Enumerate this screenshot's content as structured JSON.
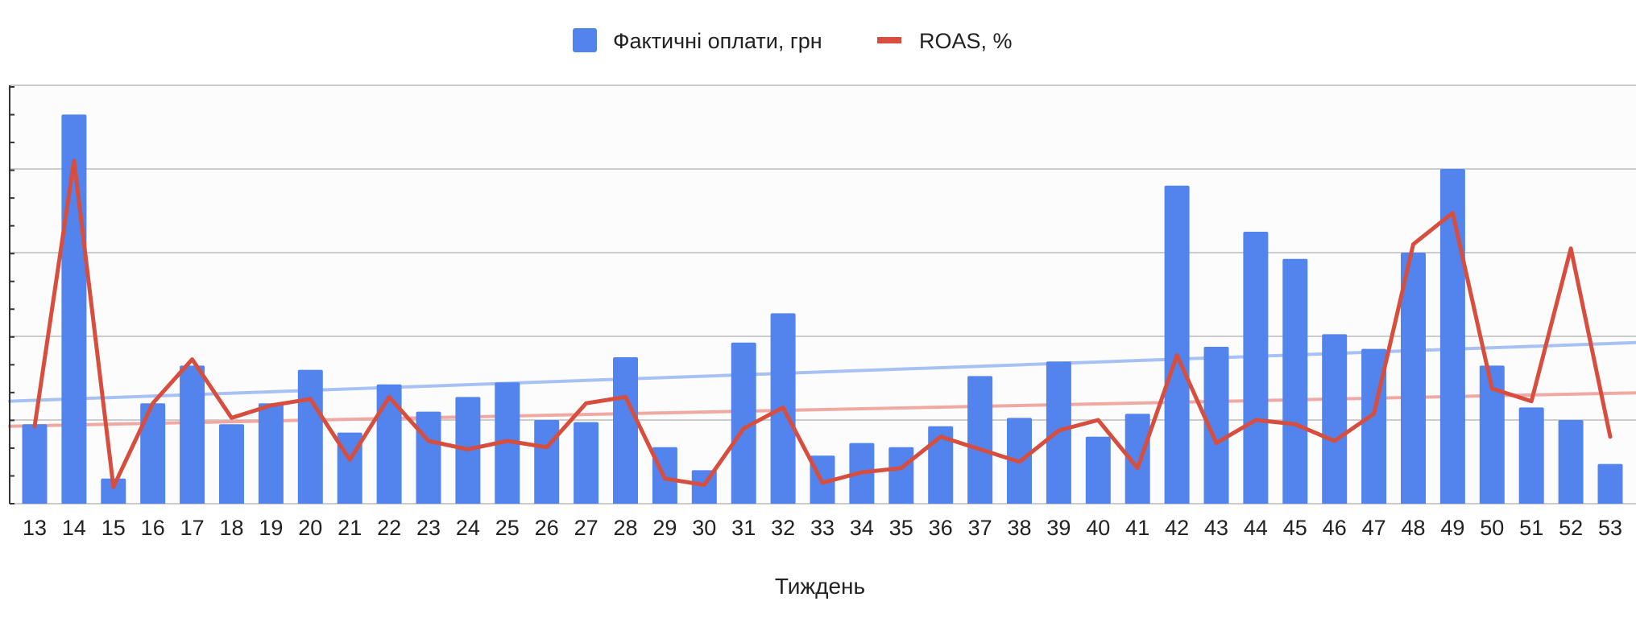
{
  "chart_data": {
    "type": "bar",
    "title": "",
    "xlabel": "Тиждень",
    "ylabel": "",
    "categories": [
      "13",
      "14",
      "15",
      "16",
      "17",
      "18",
      "19",
      "20",
      "21",
      "22",
      "23",
      "24",
      "25",
      "26",
      "27",
      "28",
      "29",
      "30",
      "31",
      "32",
      "33",
      "34",
      "35",
      "36",
      "37",
      "38",
      "39",
      "40",
      "41",
      "42",
      "43",
      "44",
      "45",
      "46",
      "47",
      "48",
      "49",
      "50",
      "51",
      "52",
      "53"
    ],
    "ylim": [
      0,
      100
    ],
    "grid": true,
    "legend_position": "top",
    "series": [
      {
        "name": "Фактичні оплати, грн",
        "kind": "bar",
        "color": "#5383EC",
        "values": [
          19,
          93,
          6,
          24,
          33,
          19,
          24,
          32,
          17,
          28.5,
          22,
          25.5,
          29,
          20,
          19.5,
          35,
          13.5,
          8,
          38.5,
          45.5,
          11.5,
          14.5,
          13.5,
          18.5,
          30.5,
          20.5,
          34,
          16,
          21.5,
          76,
          37.5,
          65,
          58.5,
          40.5,
          37,
          60,
          80,
          33,
          23,
          20,
          9.5
        ]
      },
      {
        "name": "ROAS, %",
        "kind": "line",
        "color": "#D74E3F",
        "values": [
          18.5,
          82,
          4,
          24,
          34.5,
          20.5,
          23.5,
          25,
          10.5,
          25.5,
          15,
          13,
          15,
          13.5,
          24,
          25.5,
          6,
          4.5,
          18,
          23,
          5,
          7.5,
          8.5,
          16,
          13,
          10,
          17.5,
          20,
          8.5,
          35.5,
          14.5,
          20,
          19,
          15,
          21.5,
          62,
          69.5,
          27.5,
          24.5,
          61,
          16
        ]
      }
    ],
    "trendlines": [
      {
        "series": "Фактичні оплати, грн",
        "color": "#A8C1F5",
        "start": 24.5,
        "end": 38.5
      },
      {
        "series": "ROAS, %",
        "color": "#F0A9A2",
        "start": 18.5,
        "end": 26.5
      }
    ]
  }
}
